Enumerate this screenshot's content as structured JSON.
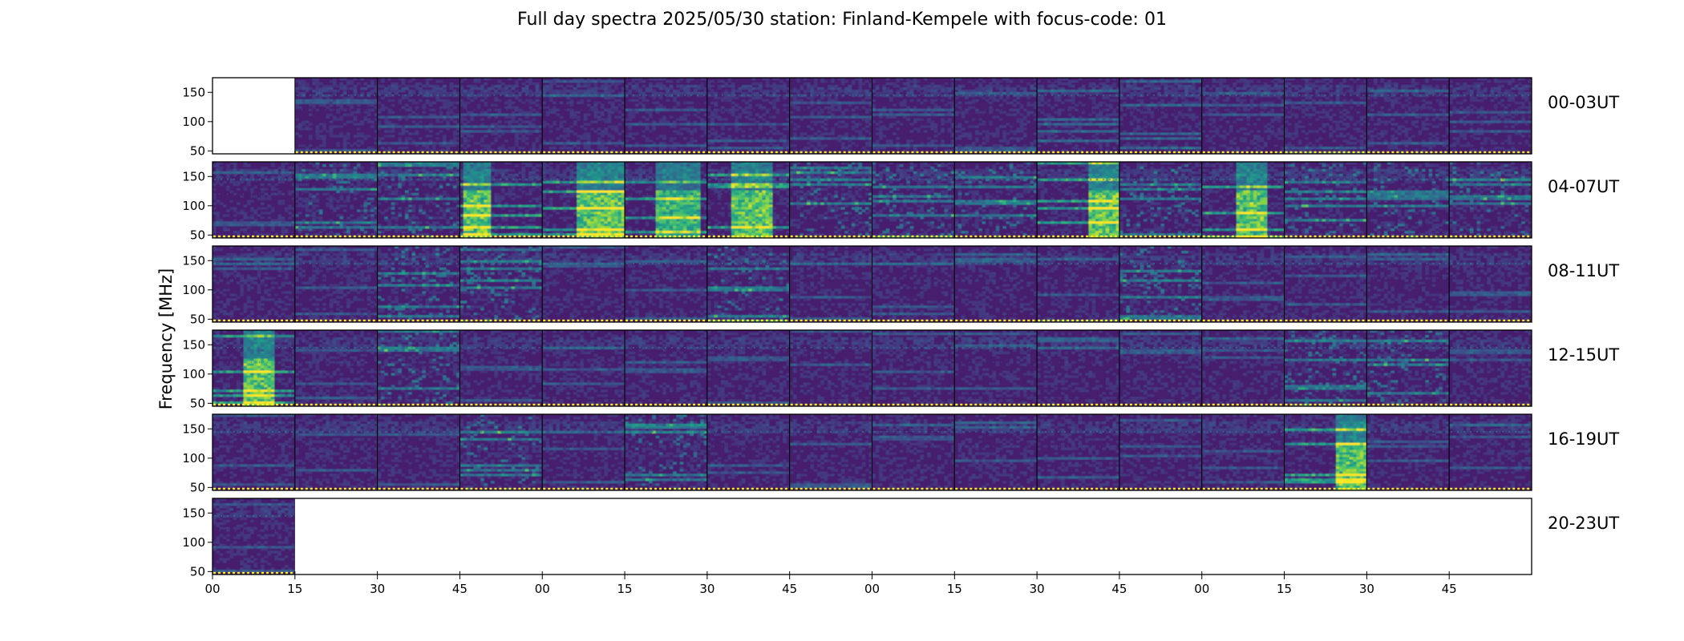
{
  "chart_data": {
    "type": "heatmap",
    "title": "Full day spectra 2025/05/30 station: Finland-Kempele with focus-code: 01",
    "ylabel": "Frequency [MHz]",
    "xlabel": "",
    "y_ticks": [
      50,
      100,
      150
    ],
    "ylim": [
      45,
      175
    ],
    "x_tick_labels": [
      "00",
      "15",
      "30",
      "45",
      "00",
      "15",
      "30",
      "45",
      "00",
      "15",
      "30",
      "45",
      "00",
      "15",
      "30",
      "45"
    ],
    "rows": [
      {
        "label": "00-03UT",
        "panels": [
          "empty",
          "quiet",
          "quiet",
          "quiet",
          "quiet",
          "quiet",
          "quiet",
          "quiet",
          "quiet",
          "quiet",
          "active",
          "active",
          "quiet",
          "quiet",
          "quiet",
          "quiet"
        ]
      },
      {
        "label": "04-07UT",
        "panels": [
          "quiet",
          "moderate",
          "moderate",
          "burst",
          "burst",
          "strong",
          "burst",
          "moderate",
          "moderate",
          "moderate",
          "burst",
          "moderate",
          "burst",
          "moderate",
          "moderate",
          "moderate"
        ]
      },
      {
        "label": "08-11UT",
        "panels": [
          "quiet",
          "quiet",
          "moderate",
          "moderate",
          "quiet",
          "quiet",
          "moderate",
          "quiet",
          "quiet",
          "quiet",
          "quiet",
          "moderate",
          "quiet",
          "quiet",
          "quiet",
          "quiet"
        ]
      },
      {
        "label": "12-15UT",
        "panels": [
          "burst",
          "quiet",
          "moderate",
          "quiet",
          "quiet",
          "quiet",
          "quiet",
          "quiet",
          "quiet",
          "quiet",
          "quiet",
          "quiet",
          "quiet",
          "moderate",
          "moderate",
          "quiet"
        ]
      },
      {
        "label": "16-19UT",
        "panels": [
          "quiet",
          "quiet",
          "quiet",
          "moderate",
          "quiet",
          "moderate",
          "quiet",
          "quiet",
          "quiet",
          "quiet",
          "quiet",
          "quiet",
          "quiet",
          "burst",
          "quiet",
          "quiet"
        ]
      },
      {
        "label": "20-23UT",
        "panels": [
          "quiet",
          "empty",
          "empty",
          "empty",
          "empty",
          "empty",
          "empty",
          "empty",
          "empty",
          "empty",
          "empty",
          "empty",
          "empty",
          "empty",
          "empty",
          "empty"
        ]
      }
    ],
    "colormap": "viridis",
    "grid": false,
    "legend": "none"
  }
}
